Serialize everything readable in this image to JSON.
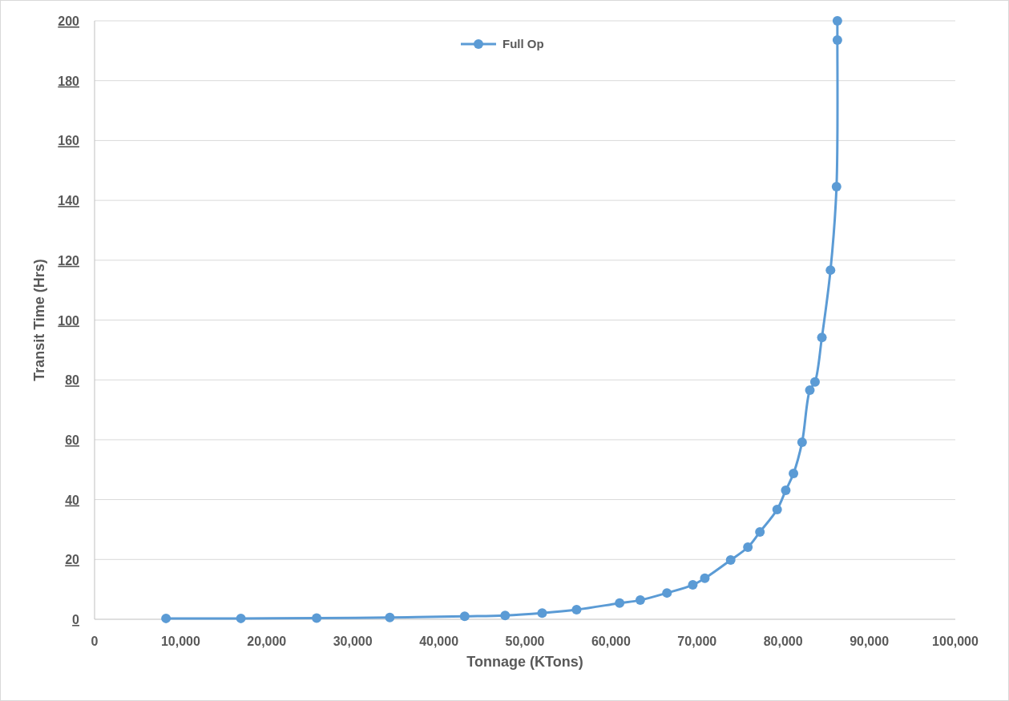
{
  "chart_data": {
    "type": "line",
    "xlabel": "Tonnage (KTons)",
    "ylabel": "Transit Time (Hrs)",
    "xlim": [
      0,
      100000
    ],
    "xticks": [
      {
        "value": 0,
        "label": "0"
      },
      {
        "value": 10000,
        "label": "10,000"
      },
      {
        "value": 20000,
        "label": "20,000"
      },
      {
        "value": 30000,
        "label": "30,000"
      },
      {
        "value": 40000,
        "label": "40,000"
      },
      {
        "value": 50000,
        "label": "50,000"
      },
      {
        "value": 60000,
        "label": "60,000"
      },
      {
        "value": 70000,
        "label": "70,000"
      },
      {
        "value": 80000,
        "label": "80,000"
      },
      {
        "value": 90000,
        "label": "90,000"
      },
      {
        "value": 100000,
        "label": "100,000"
      }
    ],
    "ylim": [
      0,
      200
    ],
    "yticks": [
      0,
      20,
      40,
      60,
      80,
      100,
      120,
      140,
      160,
      180,
      200
    ],
    "grid": "y",
    "legend": "top",
    "marker": "circle",
    "line_style": "solid",
    "series": [
      {
        "name": "Full Op",
        "color": "#5b9bd5",
        "x": [
          8300,
          17000,
          25800,
          34300,
          43000,
          47700,
          52000,
          56000,
          61000,
          63400,
          66500,
          69500,
          70900,
          73900,
          75900,
          77300,
          79300,
          80300,
          81200,
          82200,
          83100,
          83700,
          84500,
          85500,
          86200,
          86300,
          86300
        ],
        "values": [
          0.3,
          0.3,
          0.4,
          0.6,
          1,
          1.3,
          2.1,
          3.2,
          5.4,
          6.4,
          8.8,
          11.5,
          13.7,
          19.8,
          24.1,
          29.2,
          36.7,
          43.1,
          48.7,
          59.2,
          76.6,
          79.3,
          94.2,
          116.7,
          144.6,
          193.6,
          200
        ]
      }
    ]
  }
}
